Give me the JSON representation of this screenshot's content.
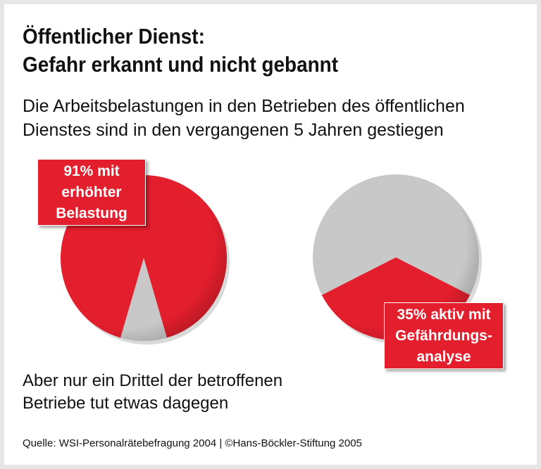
{
  "title_lines": [
    "Öffentlicher Dienst:",
    "Gefahr erkannt und nicht gebannt"
  ],
  "subtitle_lines": [
    "Die Arbeitsbelastungen in den Betrieben des öffentlichen",
    "Dienstes sind in den vergangenen 5 Jahren gestiegen"
  ],
  "note_lines": [
    "Aber nur ein Drittel der betroffenen",
    "Betriebe tut etwas dagegen"
  ],
  "source": "Quelle: WSI-Personalrätebefragung 2004 | ©Hans-Böckler-Stiftung 2005",
  "colors": {
    "highlight": "#e31e2d",
    "rest": "#c8c8c8"
  },
  "chart_data": [
    {
      "type": "pie",
      "values": [
        91,
        9
      ],
      "highlight_value": 91,
      "label_lines": [
        "91% mit",
        "erhöhter",
        "Belastung"
      ]
    },
    {
      "type": "pie",
      "values": [
        35,
        65
      ],
      "highlight_value": 35,
      "label_lines": [
        "35% aktiv mit",
        "Gefährdungs-",
        "analyse"
      ]
    }
  ]
}
